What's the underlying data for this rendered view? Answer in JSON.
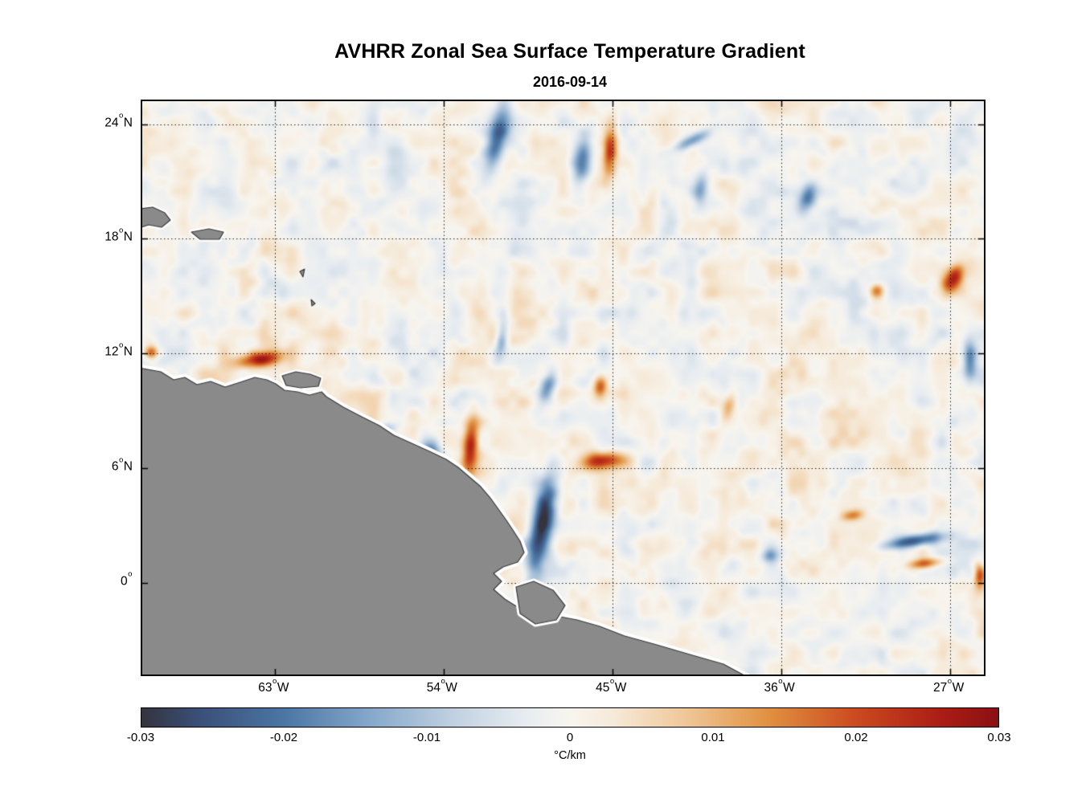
{
  "chart_data": {
    "type": "heatmap",
    "title": "AVHRR Zonal Sea Surface Temperature Gradient",
    "subtitle": "2016-09-14",
    "degree_marker": "o",
    "x_axis": {
      "tick_labels": [
        "63°W",
        "54°W",
        "45°W",
        "36°W",
        "27°W"
      ],
      "ticks": [
        {
          "frac": 0.158,
          "num": "63",
          "suffix": "W"
        },
        {
          "frac": 0.358,
          "num": "54",
          "suffix": "W"
        },
        {
          "frac": 0.559,
          "num": "45",
          "suffix": "W"
        },
        {
          "frac": 0.759,
          "num": "36",
          "suffix": "W"
        },
        {
          "frac": 0.96,
          "num": "27",
          "suffix": "W"
        }
      ],
      "approx_range_deg_west": [
        70,
        25
      ]
    },
    "y_axis": {
      "tick_labels": [
        "24°N",
        "18°N",
        "12°N",
        "6°N",
        "0°"
      ],
      "ticks": [
        {
          "frac": 0.04,
          "num": "24",
          "suffix": "N"
        },
        {
          "frac": 0.24,
          "num": "18",
          "suffix": "N"
        },
        {
          "frac": 0.44,
          "num": "12",
          "suffix": "N"
        },
        {
          "frac": 0.64,
          "num": "6",
          "suffix": "N"
        },
        {
          "frac": 0.84,
          "num": "0",
          "suffix": ""
        }
      ],
      "approx_range_deg_north": [
        -5,
        25
      ]
    },
    "grid": "dotted black lines at every labeled tick",
    "colorbar": {
      "min": -0.03,
      "max": 0.03,
      "unit_label": "°C/km",
      "tick_labels": [
        "-0.03",
        "-0.02",
        "-0.01",
        "0",
        "0.01",
        "0.02",
        "0.03"
      ],
      "tick_values": [
        -0.03,
        -0.02,
        -0.01,
        0,
        0.01,
        0.02,
        0.03
      ],
      "stops": [
        [
          -0.03,
          "#34343d"
        ],
        [
          -0.026,
          "#3a4f78"
        ],
        [
          -0.02,
          "#4b76a4"
        ],
        [
          -0.014,
          "#85a8cb"
        ],
        [
          -0.008,
          "#c2d2e2"
        ],
        [
          -0.003,
          "#e8edf1"
        ],
        [
          0.0,
          "#f8f5ef"
        ],
        [
          0.003,
          "#f6ead9"
        ],
        [
          0.008,
          "#f0c89a"
        ],
        [
          0.014,
          "#e0903f"
        ],
        [
          0.02,
          "#cc4a20"
        ],
        [
          0.026,
          "#ab1d15"
        ],
        [
          0.03,
          "#8c1013"
        ]
      ]
    },
    "field_description": "Zonal SST gradient field over the tropical western Atlantic; mostly weak mottling within ±0.01 °C/km with stronger mesoscale filaments (listed in features).",
    "land_mask_description": "Northeastern South America and Caribbean islands masked in gray with white no-data coastal halo",
    "features": [
      {
        "cx": 0.422,
        "cy": 0.064,
        "rx": 0.013,
        "ry": 0.056,
        "rot": 8,
        "amp": -0.026
      },
      {
        "cx": 0.523,
        "cy": 0.102,
        "rx": 0.011,
        "ry": 0.046,
        "rot": 4,
        "amp": -0.02
      },
      {
        "cx": 0.556,
        "cy": 0.085,
        "rx": 0.008,
        "ry": 0.04,
        "rot": 2,
        "amp": 0.022
      },
      {
        "cx": 0.654,
        "cy": 0.067,
        "rx": 0.028,
        "ry": 0.009,
        "rot": -38,
        "amp": -0.016
      },
      {
        "cx": 0.791,
        "cy": 0.167,
        "rx": 0.01,
        "ry": 0.024,
        "rot": 10,
        "amp": -0.018
      },
      {
        "cx": 0.14,
        "cy": 0.45,
        "rx": 0.024,
        "ry": 0.013,
        "rot": -15,
        "amp": 0.027
      },
      {
        "cx": 0.01,
        "cy": 0.438,
        "rx": 0.008,
        "ry": 0.011,
        "rot": 0,
        "amp": 0.022
      },
      {
        "cx": 0.342,
        "cy": 0.611,
        "rx": 0.012,
        "ry": 0.026,
        "rot": 5,
        "amp": -0.022
      },
      {
        "cx": 0.39,
        "cy": 0.601,
        "rx": 0.009,
        "ry": 0.047,
        "rot": 3,
        "amp": 0.026
      },
      {
        "cx": 0.475,
        "cy": 0.74,
        "rx": 0.013,
        "ry": 0.088,
        "rot": 7,
        "amp": -0.028
      },
      {
        "cx": 0.544,
        "cy": 0.628,
        "rx": 0.026,
        "ry": 0.015,
        "rot": -12,
        "amp": 0.026
      },
      {
        "cx": 0.544,
        "cy": 0.499,
        "rx": 0.008,
        "ry": 0.018,
        "rot": 0,
        "amp": 0.018
      },
      {
        "cx": 0.917,
        "cy": 0.768,
        "rx": 0.036,
        "ry": 0.011,
        "rot": -14,
        "amp": -0.027
      },
      {
        "cx": 0.931,
        "cy": 0.807,
        "rx": 0.022,
        "ry": 0.009,
        "rot": -10,
        "amp": 0.02
      },
      {
        "cx": 0.965,
        "cy": 0.31,
        "rx": 0.011,
        "ry": 0.028,
        "rot": 18,
        "amp": 0.026
      },
      {
        "cx": 0.874,
        "cy": 0.331,
        "rx": 0.009,
        "ry": 0.013,
        "rot": 0,
        "amp": 0.018
      },
      {
        "cx": 0.984,
        "cy": 0.45,
        "rx": 0.008,
        "ry": 0.036,
        "rot": 0,
        "amp": -0.018
      },
      {
        "cx": 0.697,
        "cy": 0.534,
        "rx": 0.008,
        "ry": 0.026,
        "rot": 10,
        "amp": 0.012
      },
      {
        "cx": 0.282,
        "cy": 0.576,
        "rx": 0.02,
        "ry": 0.009,
        "rot": -32,
        "amp": -0.014
      },
      {
        "cx": 0.427,
        "cy": 0.415,
        "rx": 0.007,
        "ry": 0.032,
        "rot": 5,
        "amp": -0.014
      },
      {
        "cx": 0.482,
        "cy": 0.499,
        "rx": 0.009,
        "ry": 0.032,
        "rot": 12,
        "amp": -0.016
      },
      {
        "cx": 0.996,
        "cy": 0.828,
        "rx": 0.007,
        "ry": 0.024,
        "rot": 0,
        "amp": 0.022
      },
      {
        "cx": 0.745,
        "cy": 0.793,
        "rx": 0.011,
        "ry": 0.013,
        "rot": 0,
        "amp": -0.014
      },
      {
        "cx": 0.845,
        "cy": 0.723,
        "rx": 0.013,
        "ry": 0.009,
        "rot": -20,
        "amp": 0.014
      },
      {
        "cx": 0.664,
        "cy": 0.152,
        "rx": 0.009,
        "ry": 0.028,
        "rot": 6,
        "amp": -0.014
      }
    ],
    "land": [
      {
        "name": "south-america-mainland",
        "halo": 9,
        "pts": [
          [
            -0.01,
            0.4636
          ],
          [
            0.022,
            0.472
          ],
          [
            0.0372,
            0.486
          ],
          [
            0.0506,
            0.4818
          ],
          [
            0.0649,
            0.4944
          ],
          [
            0.0812,
            0.4888
          ],
          [
            0.0984,
            0.4986
          ],
          [
            0.1165,
            0.4902
          ],
          [
            0.1337,
            0.4818
          ],
          [
            0.148,
            0.486
          ],
          [
            0.1585,
            0.493
          ],
          [
            0.169,
            0.5042
          ],
          [
            0.1843,
            0.507
          ],
          [
            0.1986,
            0.5126
          ],
          [
            0.213,
            0.507
          ],
          [
            0.2187,
            0.5154
          ],
          [
            0.2388,
            0.5336
          ],
          [
            0.2607,
            0.5504
          ],
          [
            0.2817,
            0.5658
          ],
          [
            0.2989,
            0.5826
          ],
          [
            0.32,
            0.5966
          ],
          [
            0.341,
            0.6106
          ],
          [
            0.361,
            0.6246
          ],
          [
            0.3753,
            0.6387
          ],
          [
            0.3887,
            0.6555
          ],
          [
            0.4021,
            0.6723
          ],
          [
            0.4135,
            0.6919
          ],
          [
            0.4231,
            0.7115
          ],
          [
            0.4326,
            0.7311
          ],
          [
            0.4403,
            0.7479
          ],
          [
            0.4489,
            0.7675
          ],
          [
            0.4537,
            0.7871
          ],
          [
            0.446,
            0.8039
          ],
          [
            0.4288,
            0.8123
          ],
          [
            0.4174,
            0.8235
          ],
          [
            0.4269,
            0.8375
          ],
          [
            0.4174,
            0.8515
          ],
          [
            0.4307,
            0.8683
          ],
          [
            0.4489,
            0.8852
          ],
          [
            0.4708,
            0.902
          ],
          [
            0.4966,
            0.8992
          ],
          [
            0.5167,
            0.9048
          ],
          [
            0.5435,
            0.916
          ],
          [
            0.5731,
            0.9328
          ],
          [
            0.6113,
            0.9482
          ],
          [
            0.6504,
            0.965
          ],
          [
            0.6905,
            0.9818
          ],
          [
            0.726,
            1.01
          ],
          [
            -0.01,
            1.01
          ]
        ]
      },
      {
        "name": "paria-trinidad",
        "halo": 6,
        "pts": [
          [
            0.1662,
            0.479
          ],
          [
            0.1824,
            0.472
          ],
          [
            0.1996,
            0.4762
          ],
          [
            0.212,
            0.4832
          ],
          [
            0.2092,
            0.4972
          ],
          [
            0.1882,
            0.5
          ],
          [
            0.171,
            0.4958
          ]
        ]
      },
      {
        "name": "hispaniola-tip",
        "halo": 6,
        "pts": [
          [
            -0.01,
            0.1891
          ],
          [
            0.0124,
            0.1849
          ],
          [
            0.0267,
            0.1947
          ],
          [
            0.0334,
            0.2073
          ],
          [
            0.0229,
            0.2199
          ],
          [
            0.0076,
            0.2157
          ],
          [
            -0.01,
            0.2241
          ]
        ]
      },
      {
        "name": "puerto-rico",
        "halo": 6,
        "pts": [
          [
            0.0583,
            0.2283
          ],
          [
            0.0793,
            0.2227
          ],
          [
            0.0965,
            0.2283
          ],
          [
            0.0917,
            0.2409
          ],
          [
            0.0688,
            0.2409
          ]
        ]
      },
      {
        "name": "marajo-island",
        "halo": 7,
        "pts": [
          [
            0.4441,
            0.8473
          ],
          [
            0.4651,
            0.8375
          ],
          [
            0.4881,
            0.8529
          ],
          [
            0.5024,
            0.8796
          ],
          [
            0.4919,
            0.9048
          ],
          [
            0.4671,
            0.9118
          ],
          [
            0.4489,
            0.8936
          ]
        ]
      },
      {
        "name": "small-antille-1",
        "halo": 2.5,
        "pts": [
          [
            0.1872,
            0.2969
          ],
          [
            0.1929,
            0.2927
          ],
          [
            0.191,
            0.3067
          ]
        ]
      },
      {
        "name": "small-antille-2",
        "halo": 2.5,
        "pts": [
          [
            0.2006,
            0.3459
          ],
          [
            0.2054,
            0.3529
          ],
          [
            0.2015,
            0.3571
          ]
        ]
      }
    ]
  },
  "colors": {
    "land": "#8a8a8a",
    "coastline": "#3a3a3a",
    "coast_halo": "#ffffff",
    "grid": "#000000",
    "frame": "#000000",
    "text": "#000000",
    "background": "#ffffff"
  }
}
